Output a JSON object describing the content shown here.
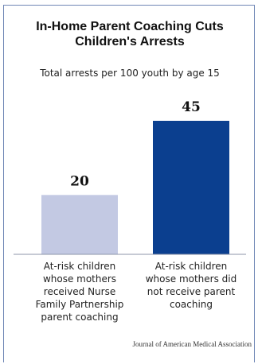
{
  "chart_data": {
    "type": "bar",
    "title": "In-Home Parent Coaching Cuts Children's Arrests",
    "subtitle": "Total arrests per 100 youth by age 15",
    "categories": [
      "At-risk children whose mothers received Nurse Family Partnership parent coaching",
      "At-risk children whose mothers did not receive parent coaching"
    ],
    "values": [
      20,
      45
    ],
    "data_labels": [
      "20",
      "45"
    ],
    "colors": [
      "#c3c9e3",
      "#0b3f8f"
    ],
    "ylim": [
      0,
      50
    ],
    "grid": false,
    "legend": "none",
    "source": "Journal of American Medical Association"
  }
}
